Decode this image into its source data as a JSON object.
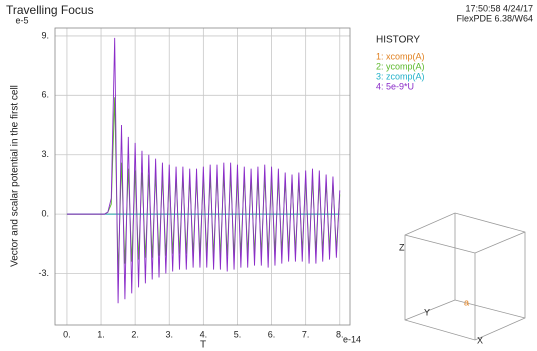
{
  "chart_data": {
    "type": "line",
    "title": "Travelling Focus",
    "timestamp": "17:50:58 4/24/17",
    "software": "FlexPDE 6.38/W64",
    "y_exponent": "e-5",
    "x_exponent": "e-14",
    "xlabel": "T",
    "ylabel": "Vector and scalar potential in the first cell",
    "legend_title": "HISTORY",
    "grid": true,
    "xlim": [
      -0.35,
      8.3
    ],
    "ylim": [
      -5.6,
      9.4
    ],
    "xticks": [
      {
        "value": 0,
        "label": "0."
      },
      {
        "value": 1,
        "label": "1."
      },
      {
        "value": 2,
        "label": "2."
      },
      {
        "value": 3,
        "label": "3."
      },
      {
        "value": 4,
        "label": "4."
      },
      {
        "value": 5,
        "label": "5."
      },
      {
        "value": 6,
        "label": "6."
      },
      {
        "value": 7,
        "label": "7."
      },
      {
        "value": 8,
        "label": "8."
      }
    ],
    "yticks": [
      {
        "value": -3,
        "label": "-3."
      },
      {
        "value": 0,
        "label": "0."
      },
      {
        "value": 3,
        "label": "3."
      },
      {
        "value": 6,
        "label": "6."
      },
      {
        "value": 9,
        "label": "9."
      }
    ],
    "x": [
      0,
      1.1,
      1.2,
      1.3,
      1.4,
      1.5,
      1.6,
      1.7,
      1.8,
      1.9,
      2.0,
      2.1,
      2.2,
      2.3,
      2.4,
      2.5,
      2.6,
      2.7,
      2.8,
      2.9,
      3.0,
      3.1,
      3.2,
      3.3,
      3.4,
      3.5,
      3.6,
      3.7,
      3.8,
      3.9,
      4.0,
      4.1,
      4.2,
      4.3,
      4.4,
      4.5,
      4.6,
      4.7,
      4.8,
      4.9,
      5.0,
      5.1,
      5.2,
      5.3,
      5.4,
      5.5,
      5.6,
      5.7,
      5.8,
      5.9,
      6.0,
      6.1,
      6.2,
      6.3,
      6.4,
      6.5,
      6.6,
      6.7,
      6.8,
      6.9,
      7.0,
      7.1,
      7.2,
      7.3,
      7.4,
      7.5,
      7.6,
      7.7,
      7.8,
      7.9,
      8.0
    ],
    "series": [
      {
        "name": "1: xcomp(A)",
        "color": "#e08020",
        "values": [
          0,
          0,
          0,
          0,
          0,
          0,
          0,
          0,
          0,
          0,
          0,
          0,
          0,
          0,
          0,
          0,
          0,
          0,
          0,
          0,
          0,
          0,
          0,
          0,
          0,
          0,
          0,
          0,
          0,
          0,
          0,
          0,
          0,
          0,
          0,
          0,
          0,
          0,
          0,
          0,
          0,
          0,
          0,
          0,
          0,
          0,
          0,
          0,
          0,
          0,
          0,
          0,
          0,
          0,
          0,
          0,
          0,
          0,
          0,
          0,
          0,
          0,
          0,
          0,
          0,
          0,
          0,
          0,
          0,
          0,
          0
        ]
      },
      {
        "name": "2: ycomp(A)",
        "color": "#5cb82c",
        "values": [
          0,
          0,
          0.1,
          0.5,
          5.9,
          -3.0,
          2.6,
          -2.5,
          2.3,
          -2.4,
          2.2,
          -2.3,
          2.1,
          -2.2,
          2.0,
          -2.2,
          2.0,
          -2.1,
          1.9,
          -2.1,
          1.9,
          -2.0,
          1.9,
          -2.0,
          1.9,
          -2.0,
          1.8,
          -2.0,
          1.8,
          -2.0,
          1.9,
          -2.0,
          1.9,
          -2.1,
          2.0,
          -2.1,
          2.0,
          -2.1,
          2.0,
          -2.1,
          1.9,
          -2.0,
          1.9,
          -2.0,
          1.8,
          -2.0,
          1.8,
          -2.0,
          1.9,
          -2.0,
          1.8,
          -1.9,
          1.8,
          -1.9,
          1.7,
          -1.9,
          1.7,
          -1.9,
          1.7,
          -1.9,
          1.8,
          -2.0,
          1.8,
          -1.9,
          1.7,
          -1.9,
          1.6,
          -1.8,
          1.6,
          -1.8,
          1.0
        ]
      },
      {
        "name": "3: zcomp(A)",
        "color": "#20b0c8",
        "values": [
          0,
          0,
          0,
          0,
          0,
          0,
          0,
          0,
          0,
          0,
          0,
          0,
          0,
          0,
          0,
          0,
          0,
          0,
          0,
          0,
          0,
          0,
          0,
          0,
          0,
          0,
          0,
          0,
          0,
          0,
          0,
          0,
          0,
          0,
          0,
          0,
          0,
          0,
          0,
          0,
          0,
          0,
          0,
          0,
          0,
          0,
          0,
          0,
          0,
          0,
          0,
          0,
          0,
          0,
          0,
          0,
          0,
          0,
          0,
          0,
          0,
          0,
          0,
          0,
          0,
          0,
          0,
          0,
          0,
          0,
          0
        ]
      },
      {
        "name": "4: 5e-9*U",
        "color": "#8a2cc8",
        "values": [
          0,
          0,
          0.1,
          0.8,
          8.9,
          -4.5,
          4.5,
          -4.3,
          3.9,
          -4.0,
          3.6,
          -3.7,
          3.2,
          -3.5,
          3.0,
          -3.3,
          2.8,
          -3.2,
          2.6,
          -3.0,
          2.5,
          -2.9,
          2.4,
          -2.8,
          2.4,
          -2.8,
          2.3,
          -2.7,
          2.3,
          -2.7,
          2.4,
          -2.7,
          2.5,
          -2.8,
          2.5,
          -2.8,
          2.6,
          -2.9,
          2.6,
          -2.8,
          2.5,
          -2.7,
          2.4,
          -2.7,
          2.3,
          -2.6,
          2.4,
          -2.6,
          2.5,
          -2.7,
          2.4,
          -2.6,
          2.3,
          -2.5,
          2.1,
          -2.4,
          2.0,
          -2.4,
          2.1,
          -2.4,
          2.2,
          -2.5,
          2.3,
          -2.5,
          2.2,
          -2.4,
          2.0,
          -2.3,
          1.9,
          -2.2,
          1.2
        ]
      }
    ],
    "axis_widget": {
      "labels": [
        "Z",
        "Y",
        "X"
      ],
      "marker": "a"
    }
  }
}
